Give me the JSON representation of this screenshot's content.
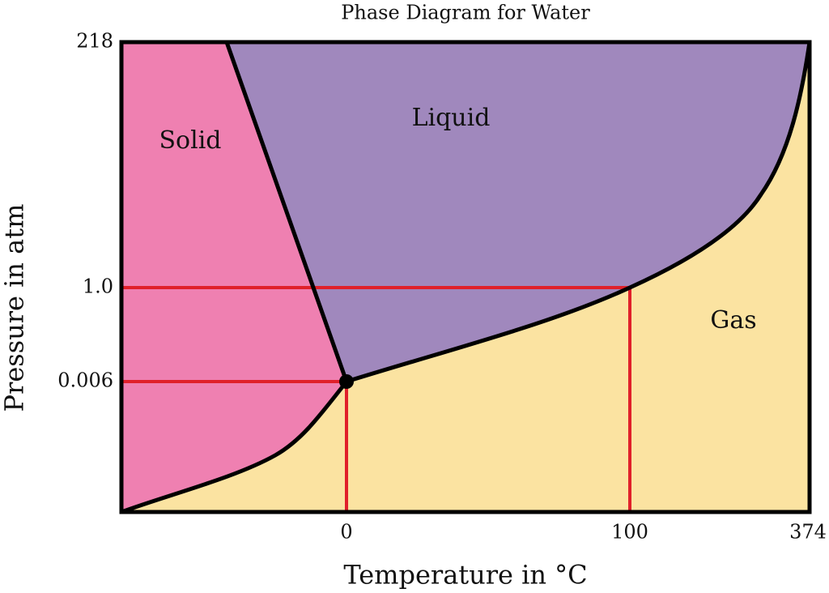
{
  "title": "Phase Diagram for Water",
  "axes": {
    "x_label": "Temperature in °C",
    "y_label": "Pressure in atm",
    "x_ticks": [
      "0",
      "100",
      "374"
    ],
    "y_ticks": [
      "218",
      "1.0",
      "0.006"
    ]
  },
  "regions": [
    "Solid",
    "Liquid",
    "Gas"
  ]
}
